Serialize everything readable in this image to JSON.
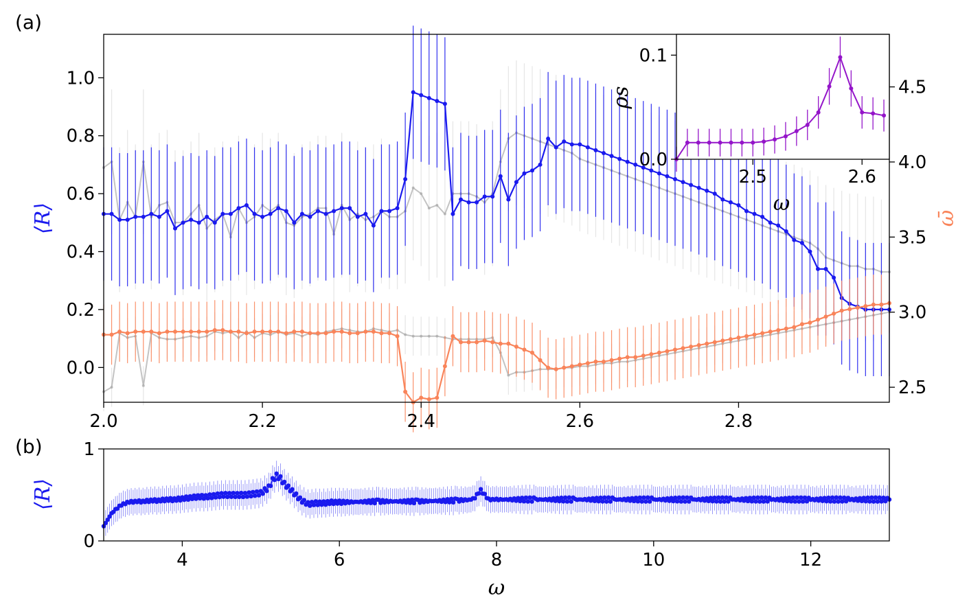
{
  "panels": {
    "a": "(a)",
    "b": "(b)"
  },
  "colors": {
    "blue": "#1a1aee",
    "orange": "#f9845a",
    "gray": "#aaaaaa",
    "purple": "#9415c9"
  },
  "chart_data": [
    {
      "panel": "(a)",
      "type": "line",
      "xlabel": "",
      "ylabel_left": "⟨R⟩",
      "ylabel_right": "ω̄",
      "xlim": [
        2.0,
        2.99
      ],
      "ylim_left": [
        -0.12,
        1.15
      ],
      "ylim_right": [
        2.4,
        4.85
      ],
      "xticks": [
        "2.0",
        "2.2",
        "2.4",
        "2.6",
        "2.8"
      ],
      "yticks_left": [
        "0.0",
        "0.2",
        "0.4",
        "0.6",
        "0.8",
        "1.0"
      ],
      "yticks_right": [
        "2.5",
        "3.0",
        "3.5",
        "4.0",
        "4.5"
      ],
      "x": [
        2.0,
        2.01,
        2.02,
        2.03,
        2.04,
        2.05,
        2.06,
        2.07,
        2.08,
        2.09,
        2.1,
        2.11,
        2.12,
        2.13,
        2.14,
        2.15,
        2.16,
        2.17,
        2.18,
        2.19,
        2.2,
        2.21,
        2.22,
        2.23,
        2.24,
        2.25,
        2.26,
        2.27,
        2.28,
        2.29,
        2.3,
        2.31,
        2.32,
        2.33,
        2.34,
        2.35,
        2.36,
        2.37,
        2.38,
        2.39,
        2.4,
        2.41,
        2.42,
        2.43,
        2.44,
        2.45,
        2.46,
        2.47,
        2.48,
        2.49,
        2.5,
        2.51,
        2.52,
        2.53,
        2.54,
        2.55,
        2.56,
        2.57,
        2.58,
        2.59,
        2.6,
        2.61,
        2.62,
        2.63,
        2.64,
        2.65,
        2.66,
        2.67,
        2.68,
        2.69,
        2.7,
        2.71,
        2.72,
        2.73,
        2.74,
        2.75,
        2.76,
        2.77,
        2.78,
        2.79,
        2.8,
        2.81,
        2.82,
        2.83,
        2.84,
        2.85,
        2.86,
        2.87,
        2.88,
        2.89,
        2.9,
        2.91,
        2.92,
        2.93,
        2.94,
        2.95,
        2.96,
        2.97,
        2.98,
        2.99
      ],
      "series": [
        {
          "axis": "left",
          "color": "#1a1aee",
          "values": [
            0.53,
            0.53,
            0.51,
            0.51,
            0.52,
            0.52,
            0.53,
            0.52,
            0.54,
            0.48,
            0.5,
            0.51,
            0.5,
            0.52,
            0.5,
            0.53,
            0.53,
            0.55,
            0.56,
            0.53,
            0.52,
            0.53,
            0.55,
            0.54,
            0.5,
            0.53,
            0.52,
            0.54,
            0.53,
            0.54,
            0.55,
            0.55,
            0.52,
            0.53,
            0.49,
            0.54,
            0.54,
            0.55,
            0.65,
            0.95,
            0.94,
            0.93,
            0.92,
            0.91,
            0.53,
            0.58,
            0.57,
            0.57,
            0.59,
            0.59,
            0.66,
            0.58,
            0.64,
            0.67,
            0.68,
            0.7,
            0.79,
            0.76,
            0.78,
            0.77,
            0.77,
            0.76,
            0.75,
            0.74,
            0.73,
            0.72,
            0.71,
            0.7,
            0.69,
            0.68,
            0.67,
            0.66,
            0.65,
            0.64,
            0.63,
            0.62,
            0.61,
            0.6,
            0.58,
            0.57,
            0.56,
            0.54,
            0.53,
            0.52,
            0.5,
            0.49,
            0.47,
            0.44,
            0.43,
            0.4,
            0.34,
            0.34,
            0.31,
            0.24,
            0.22,
            0.21,
            0.2,
            0.2,
            0.2,
            0.2
          ],
          "err": 0.23
        },
        {
          "axis": "left",
          "color": "#aaaaaa",
          "values": [
            0.69,
            0.71,
            0.51,
            0.57,
            0.52,
            0.71,
            0.52,
            0.56,
            0.57,
            0.5,
            0.5,
            0.53,
            0.56,
            0.48,
            0.51,
            0.53,
            0.45,
            0.55,
            0.5,
            0.52,
            0.56,
            0.54,
            0.56,
            0.5,
            0.49,
            0.52,
            0.53,
            0.55,
            0.55,
            0.46,
            0.56,
            0.51,
            0.53,
            0.51,
            0.52,
            0.54,
            0.52,
            0.52,
            0.54,
            0.62,
            0.6,
            0.55,
            0.56,
            0.53,
            0.6,
            0.6,
            0.6,
            0.59,
            0.57,
            0.6,
            0.71,
            0.79,
            0.81,
            0.8,
            0.79,
            0.78,
            0.77,
            0.76,
            0.75,
            0.74,
            0.72,
            0.71,
            0.7,
            0.69,
            0.68,
            0.67,
            0.66,
            0.65,
            0.64,
            0.63,
            0.62,
            0.61,
            0.6,
            0.59,
            0.58,
            0.57,
            0.56,
            0.55,
            0.54,
            0.53,
            0.52,
            0.51,
            0.5,
            0.49,
            0.48,
            0.47,
            0.46,
            0.45,
            0.44,
            0.43,
            0.41,
            0.38,
            0.37,
            0.36,
            0.35,
            0.35,
            0.34,
            0.34,
            0.33,
            0.33
          ],
          "err": 0.25
        },
        {
          "axis": "right",
          "color": "#f9845a",
          "values": [
            2.85,
            2.85,
            2.87,
            2.86,
            2.87,
            2.87,
            2.87,
            2.86,
            2.87,
            2.87,
            2.87,
            2.87,
            2.87,
            2.87,
            2.88,
            2.88,
            2.87,
            2.87,
            2.86,
            2.87,
            2.87,
            2.87,
            2.87,
            2.86,
            2.87,
            2.87,
            2.86,
            2.86,
            2.86,
            2.87,
            2.87,
            2.86,
            2.86,
            2.87,
            2.87,
            2.86,
            2.86,
            2.84,
            2.47,
            2.4,
            2.43,
            2.42,
            2.43,
            2.64,
            2.84,
            2.8,
            2.8,
            2.8,
            2.81,
            2.8,
            2.79,
            2.79,
            2.77,
            2.75,
            2.73,
            2.68,
            2.63,
            2.62,
            2.63,
            2.64,
            2.65,
            2.66,
            2.67,
            2.67,
            2.68,
            2.69,
            2.7,
            2.7,
            2.71,
            2.72,
            2.73,
            2.74,
            2.75,
            2.76,
            2.77,
            2.78,
            2.79,
            2.8,
            2.81,
            2.82,
            2.83,
            2.84,
            2.85,
            2.86,
            2.87,
            2.88,
            2.89,
            2.9,
            2.92,
            2.93,
            2.95,
            2.97,
            2.99,
            3.01,
            3.02,
            3.03,
            3.04,
            3.05,
            3.05,
            3.06
          ],
          "err": 0.2
        },
        {
          "axis": "right",
          "color": "#aaaaaa",
          "values": [
            2.47,
            2.5,
            2.86,
            2.83,
            2.84,
            2.51,
            2.86,
            2.83,
            2.82,
            2.82,
            2.83,
            2.84,
            2.83,
            2.84,
            2.87,
            2.86,
            2.87,
            2.83,
            2.87,
            2.83,
            2.86,
            2.85,
            2.87,
            2.85,
            2.86,
            2.84,
            2.86,
            2.85,
            2.87,
            2.88,
            2.89,
            2.88,
            2.87,
            2.87,
            2.89,
            2.88,
            2.87,
            2.88,
            2.85,
            2.84,
            2.84,
            2.84,
            2.84,
            2.83,
            2.82,
            2.82,
            2.82,
            2.82,
            2.82,
            2.83,
            2.73,
            2.58,
            2.6,
            2.6,
            2.61,
            2.62,
            2.62,
            2.62,
            2.63,
            2.63,
            2.64,
            2.64,
            2.65,
            2.66,
            2.66,
            2.67,
            2.67,
            2.68,
            2.69,
            2.7,
            2.71,
            2.72,
            2.73,
            2.74,
            2.75,
            2.76,
            2.77,
            2.78,
            2.79,
            2.8,
            2.81,
            2.82,
            2.83,
            2.84,
            2.85,
            2.86,
            2.87,
            2.88,
            2.89,
            2.9,
            2.91,
            2.92,
            2.93,
            2.94,
            2.95,
            2.96,
            2.97,
            2.98,
            2.99,
            3.0
          ],
          "err": 0.13
        }
      ]
    },
    {
      "panel": "inset",
      "type": "line",
      "xlabel": "ω",
      "ylabel": "ρs",
      "xlim": [
        2.43,
        2.625
      ],
      "ylim": [
        0.0,
        0.12
      ],
      "xticks": [
        "2.5",
        "2.6"
      ],
      "yticks": [
        "0.0",
        "0.1"
      ],
      "series": [
        {
          "color": "#9415c9",
          "x": [
            2.43,
            2.44,
            2.45,
            2.46,
            2.47,
            2.48,
            2.49,
            2.5,
            2.51,
            2.52,
            2.53,
            2.54,
            2.55,
            2.56,
            2.57,
            2.58,
            2.59,
            2.6,
            2.61,
            2.62
          ],
          "values": [
            0.0,
            0.016,
            0.016,
            0.016,
            0.016,
            0.016,
            0.016,
            0.016,
            0.017,
            0.019,
            0.022,
            0.027,
            0.033,
            0.045,
            0.07,
            0.098,
            0.068,
            0.045,
            0.044,
            0.042
          ]
        }
      ]
    },
    {
      "panel": "(b)",
      "type": "scatter",
      "xlabel": "ω",
      "ylabel": "⟨R⟩",
      "xlim": [
        3.0,
        13.0
      ],
      "ylim": [
        0.0,
        1.0
      ],
      "xticks": [
        "4",
        "6",
        "8",
        "10",
        "12"
      ],
      "yticks": [
        "0",
        "1"
      ],
      "series": [
        {
          "color": "#1a1aee",
          "x": [
            3.0,
            3.1,
            3.2,
            3.3,
            3.4,
            3.5,
            3.6,
            3.7,
            3.8,
            3.9,
            4.0,
            4.1,
            4.2,
            4.3,
            4.4,
            4.5,
            4.6,
            4.7,
            4.8,
            4.9,
            5.0,
            5.1,
            5.15,
            5.2,
            5.25,
            5.3,
            5.4,
            5.5,
            5.6,
            5.7,
            5.8,
            5.9,
            6.0,
            6.5,
            7.0,
            7.5,
            7.7,
            7.8,
            7.85,
            7.9,
            8.0,
            8.5,
            9.0,
            9.5,
            10.0,
            10.5,
            11.0,
            11.5,
            12.0,
            12.5,
            13.0
          ],
          "values": [
            0.16,
            0.3,
            0.38,
            0.42,
            0.43,
            0.43,
            0.44,
            0.44,
            0.45,
            0.45,
            0.46,
            0.47,
            0.48,
            0.48,
            0.49,
            0.5,
            0.5,
            0.5,
            0.5,
            0.51,
            0.52,
            0.58,
            0.66,
            0.71,
            0.68,
            0.62,
            0.54,
            0.45,
            0.4,
            0.41,
            0.41,
            0.42,
            0.42,
            0.43,
            0.43,
            0.44,
            0.45,
            0.55,
            0.5,
            0.45,
            0.45,
            0.45,
            0.45,
            0.45,
            0.45,
            0.45,
            0.45,
            0.45,
            0.45,
            0.45,
            0.45
          ],
          "err": 0.14
        }
      ]
    }
  ]
}
